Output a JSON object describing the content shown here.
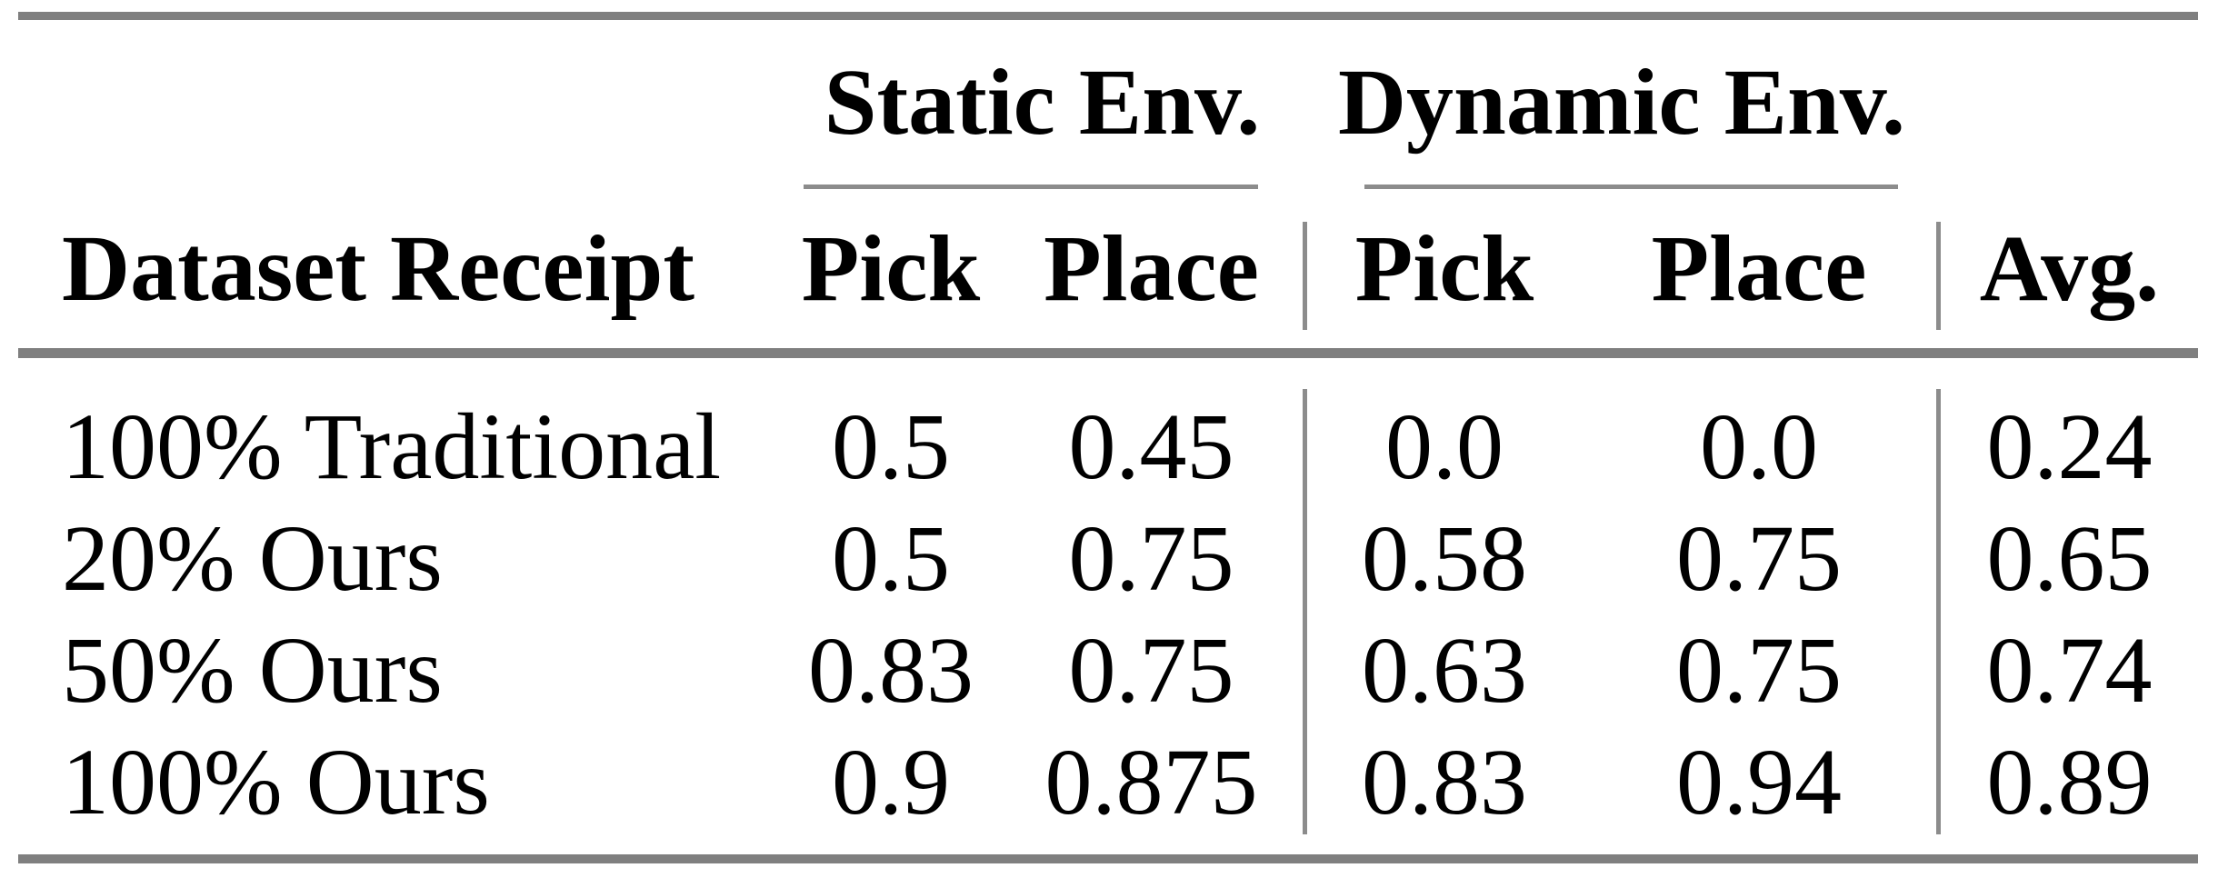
{
  "figure": {
    "type": "academic-results-table",
    "header": {
      "row_header": "Dataset Receipt",
      "groups": [
        {
          "label": "Static Env.",
          "columns": [
            "Pick",
            "Place"
          ]
        },
        {
          "label": "Dynamic Env.",
          "columns": [
            "Pick",
            "Place"
          ]
        }
      ],
      "avg_label": "Avg."
    },
    "rows": [
      {
        "label": "100% Traditional",
        "static_pick": "0.5",
        "static_place": "0.45",
        "dynamic_pick": "0.0",
        "dynamic_place": "0.0",
        "avg": "0.24"
      },
      {
        "label": "20% Ours",
        "static_pick": "0.5",
        "static_place": "0.75",
        "dynamic_pick": "0.58",
        "dynamic_place": "0.75",
        "avg": "0.65"
      },
      {
        "label": "50% Ours",
        "static_pick": "0.83",
        "static_place": "0.75",
        "dynamic_pick": "0.63",
        "dynamic_place": "0.75",
        "avg": "0.74"
      },
      {
        "label": "100% Ours",
        "static_pick": "0.9",
        "static_place": "0.875",
        "dynamic_pick": "0.83",
        "dynamic_place": "0.94",
        "avg": "0.89"
      }
    ],
    "colors": {
      "thick_rule": "#7f7f7f",
      "thin_rule": "#8c8c8c",
      "text": "#000000",
      "background": "#ffffff"
    }
  }
}
